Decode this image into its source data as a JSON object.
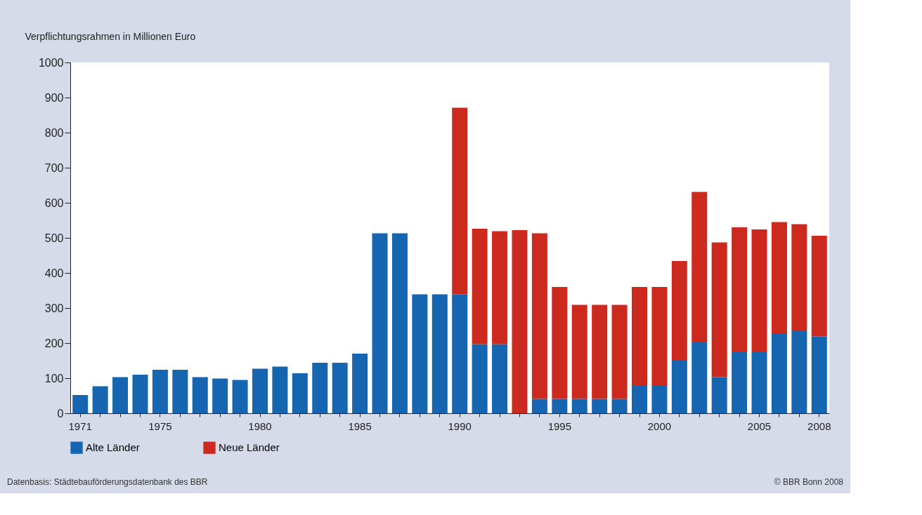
{
  "chart_data": {
    "type": "bar",
    "stacked": true,
    "ylabel": "Verpflichtungsrahmen in Millionen Euro",
    "categories": [
      "1971",
      null,
      null,
      null,
      "1975",
      null,
      null,
      null,
      null,
      "1980",
      null,
      null,
      null,
      null,
      "1985",
      null,
      null,
      null,
      null,
      "1990",
      null,
      null,
      null,
      null,
      "1995",
      null,
      null,
      null,
      null,
      "2000",
      null,
      null,
      null,
      null,
      "2005",
      null,
      null,
      "2008"
    ],
    "series": [
      {
        "name": "Alte Länder",
        "color": "#1565b0",
        "values": [
          52,
          77,
          103,
          110,
          124,
          124,
          103,
          99,
          95,
          127,
          133,
          114,
          144,
          144,
          170,
          513,
          513,
          339,
          339,
          339,
          197,
          197,
          null,
          41,
          41,
          41,
          41,
          41,
          80,
          80,
          150,
          202,
          103,
          176,
          176,
          228,
          236,
          219
        ]
      },
      {
        "name": "Neue Länder",
        "color": "#cc2a1e",
        "values": [
          null,
          null,
          null,
          null,
          null,
          null,
          null,
          null,
          null,
          null,
          null,
          null,
          null,
          null,
          null,
          null,
          null,
          null,
          null,
          532,
          329,
          322,
          522,
          472,
          319,
          268,
          268,
          268,
          280,
          280,
          284,
          429,
          384,
          354,
          348,
          317,
          303,
          287
        ]
      }
    ],
    "ylim": [
      0,
      1000
    ],
    "yticks": [
      0,
      100,
      200,
      300,
      400,
      500,
      600,
      700,
      800,
      900,
      1000
    ],
    "grid": false,
    "legend": "bottom left",
    "annotations": [
      "Datenbasis: Städtebauförderungsdatenbank des BBR",
      "© BBR Bonn 2008"
    ]
  }
}
